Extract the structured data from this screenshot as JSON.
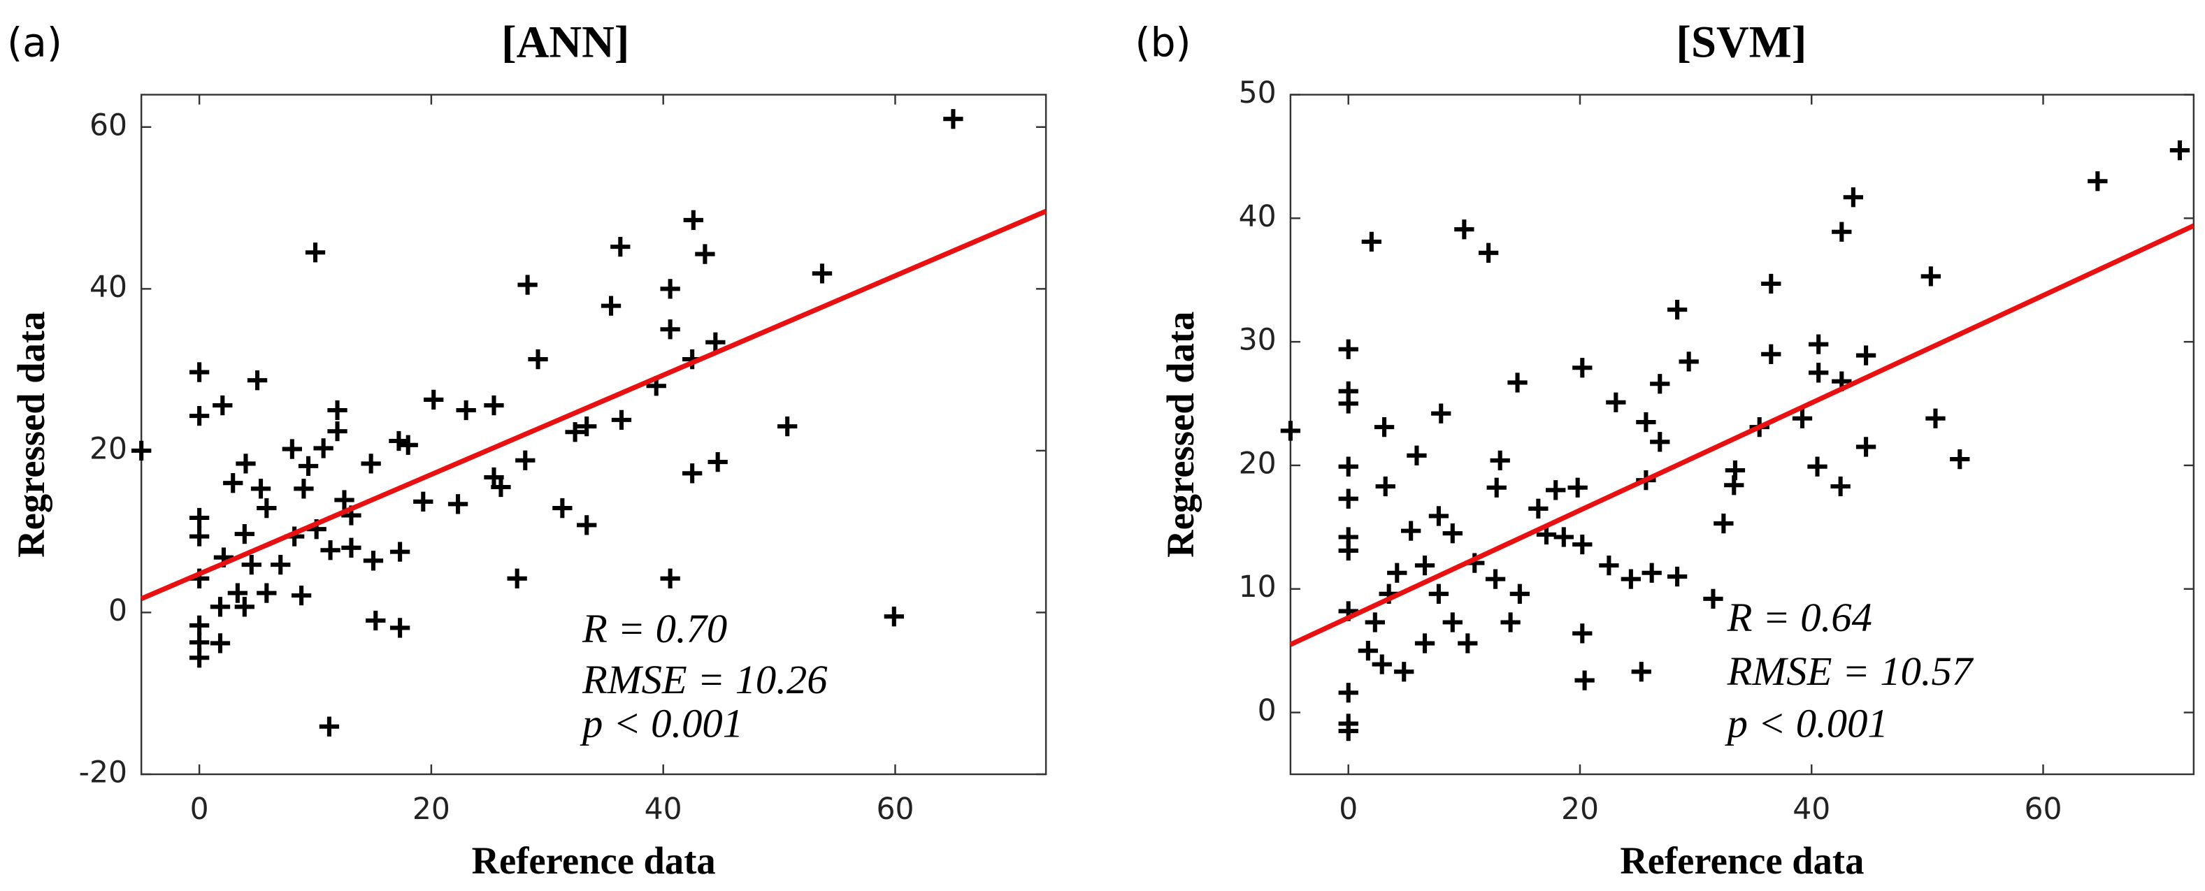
{
  "chart_data": [
    {
      "type": "scatter",
      "panel_label": "(a)",
      "title": "[ANN]",
      "x_label": "Reference data",
      "y_label": "Regressed data",
      "xlim": [
        -5,
        73
      ],
      "ylim": [
        -20,
        64
      ],
      "xticks": [
        0,
        20,
        40,
        60
      ],
      "yticks": [
        -20,
        0,
        20,
        40,
        60
      ],
      "marker_color": "#000000",
      "x": [
        -5,
        0,
        0,
        2,
        5,
        10,
        65,
        42.6,
        43.6,
        36.3,
        53.7,
        40.6,
        40.6,
        28.3,
        35.5,
        29.2,
        44.5,
        42.5,
        39.4,
        36.4,
        50.7,
        32.4,
        33.4,
        28.1,
        31.3,
        33.4,
        44.7,
        42.5,
        40.6,
        27.4,
        59.9,
        11.2,
        15.2,
        17.3,
        17.3,
        15,
        25.4,
        20.2,
        23,
        26,
        25.4,
        22.3,
        19.3,
        18,
        17.2,
        11.9,
        11.9,
        8,
        10.7,
        9.4,
        4,
        2.9,
        5.3,
        9,
        14.8,
        12.5,
        13.1,
        0,
        0,
        0,
        0,
        0,
        0,
        1.8,
        1.8,
        3.3,
        3.9,
        5.8,
        7,
        8.8,
        8.2,
        10.1,
        11.3,
        2.1,
        4.5,
        3.9,
        5.8,
        13.1
      ],
      "y": [
        20,
        29.7,
        24.3,
        25.6,
        28.7,
        44.5,
        61,
        48.5,
        44.3,
        45.2,
        41.9,
        40,
        35,
        40.5,
        37.9,
        31.3,
        33.4,
        31.3,
        28,
        23.8,
        23,
        22.3,
        23,
        18.8,
        12.9,
        10.8,
        18.6,
        17.2,
        4.2,
        4.2,
        -0.5,
        -14.1,
        -1,
        -1.9,
        7.5,
        6.4,
        25.6,
        26.3,
        25,
        15.5,
        16.7,
        13.4,
        13.7,
        20.7,
        21.2,
        25,
        22.4,
        20.2,
        20.3,
        18.1,
        18.4,
        16,
        15.3,
        15.3,
        18.4,
        13.9,
        12,
        11.7,
        9.4,
        4.2,
        -1.6,
        -3.7,
        -5.6,
        -3.8,
        0.7,
        2.4,
        0.7,
        2.4,
        5.9,
        2.1,
        9.4,
        10.3,
        7.7,
        6.8,
        5.9,
        9.7,
        12.9,
        8
      ],
      "regression": {
        "color": "#e81010",
        "x": [
          -5,
          73
        ],
        "y": [
          1.7,
          49.6
        ]
      },
      "annotations": [
        "R = 0.70",
        "RMSE = 10.26",
        "p < 0.001"
      ]
    },
    {
      "type": "scatter",
      "panel_label": "(b)",
      "title": "[SVM]",
      "x_label": "Reference data",
      "y_label": "Regressed data",
      "xlim": [
        -5,
        73
      ],
      "ylim": [
        -5,
        50
      ],
      "xticks": [
        0,
        20,
        40,
        60
      ],
      "yticks": [
        0,
        10,
        20,
        30,
        40,
        50
      ],
      "marker_color": "#000000",
      "x": [
        -5,
        0,
        0,
        0,
        0,
        0,
        0,
        0,
        0,
        0,
        0,
        0,
        2,
        10,
        12.1,
        14.6,
        3.1,
        8,
        5.9,
        3.2,
        13.1,
        12.8,
        20.2,
        23.1,
        25.7,
        26.9,
        28.4,
        29.4,
        36.5,
        36.5,
        40.6,
        40.6,
        42.6,
        43.6,
        42.6,
        44.7,
        42.5,
        40.5,
        44.7,
        39.2,
        35.5,
        33.4,
        33.3,
        32.4,
        31.5,
        25.3,
        20.4,
        50.7,
        50.3,
        52.8,
        64.7,
        71.8,
        19.8,
        20.2,
        20.2,
        17.9,
        18.6,
        16.4,
        17.1,
        14.8,
        14,
        12.7,
        10.9,
        9,
        7.8,
        5.4,
        6.6,
        7.8,
        9,
        4.2,
        3.5,
        2.3,
        1.7,
        2.9,
        4.8,
        6.6,
        10.3,
        22.5,
        24.4,
        26.2,
        28.4,
        25.7,
        26.9
      ],
      "y": [
        22.8,
        29.4,
        26,
        25,
        19.9,
        17.3,
        14.2,
        13.1,
        8.2,
        1.6,
        -0.9,
        -1.5,
        38.1,
        39.1,
        37.2,
        26.7,
        23.1,
        24.2,
        20.8,
        18.3,
        20.4,
        18.2,
        27.9,
        25.1,
        23.5,
        26.6,
        32.6,
        28.4,
        34.7,
        29,
        29.8,
        27.5,
        38.9,
        41.7,
        26.8,
        28.9,
        18.3,
        19.9,
        21.5,
        23.8,
        23.1,
        19.6,
        18.4,
        15.3,
        9.2,
        3.3,
        2.6,
        23.8,
        35.3,
        20.5,
        43,
        45.5,
        18.2,
        13.6,
        6.4,
        18,
        14.2,
        16.5,
        14.4,
        9.6,
        7.3,
        10.8,
        12.1,
        14.5,
        15.9,
        14.7,
        11.9,
        9.6,
        7.3,
        11.3,
        9.6,
        7.3,
        5,
        3.9,
        3.3,
        5.6,
        5.6,
        11.9,
        10.8,
        11.3,
        11,
        18.8,
        21.9
      ],
      "regression": {
        "color": "#e81010",
        "x": [
          -5,
          73
        ],
        "y": [
          5.5,
          39.4
        ]
      },
      "annotations": [
        "R = 0.64",
        "RMSE = 10.57",
        "p < 0.001"
      ]
    }
  ]
}
